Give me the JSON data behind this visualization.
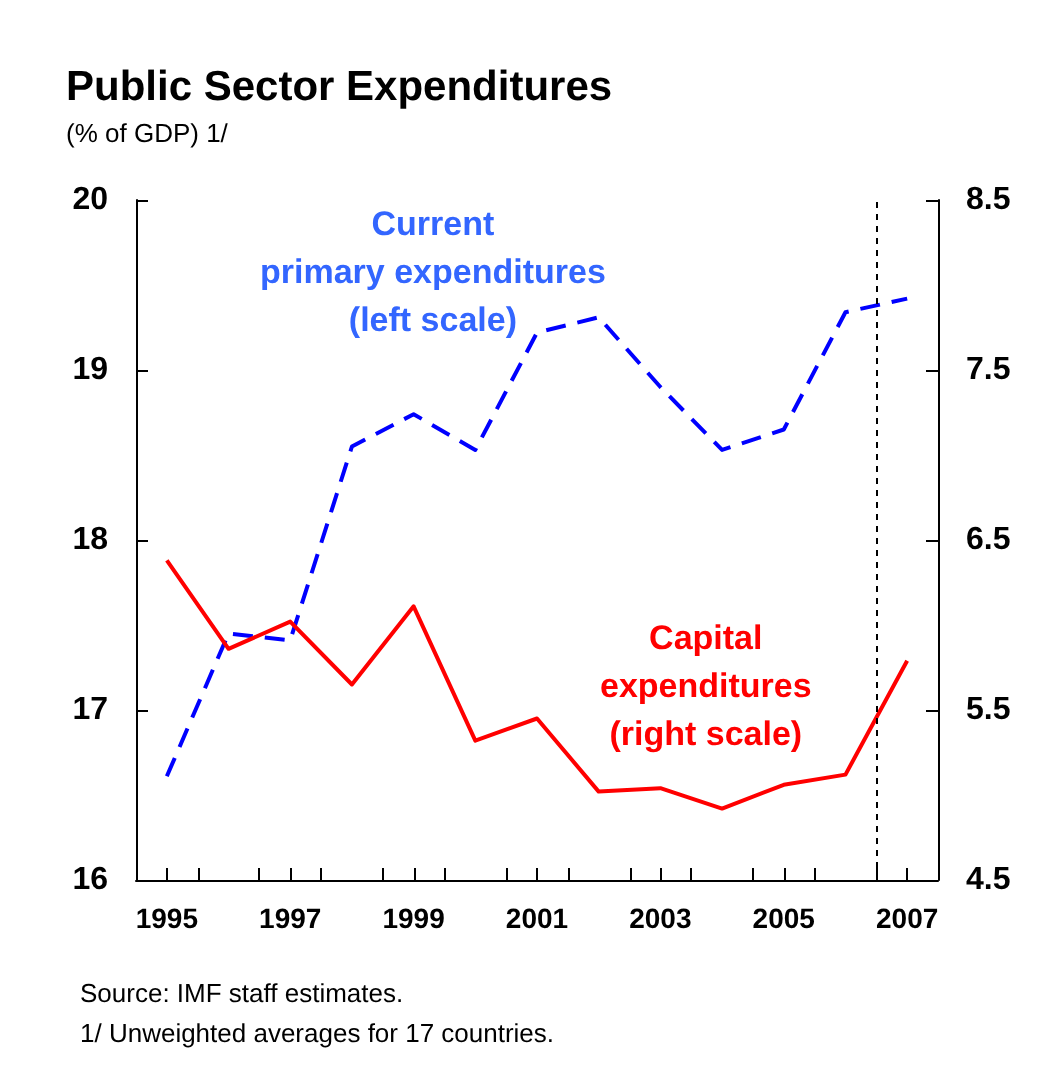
{
  "chart_data": {
    "type": "line",
    "title": "Public Sector Expenditures",
    "subtitle": "(% of GDP) 1/",
    "x": [
      1995,
      1996,
      1997,
      1998,
      1999,
      2000,
      2001,
      2002,
      2003,
      2004,
      2005,
      2006,
      2007
    ],
    "series": [
      {
        "name": "Current\nprimary expenditures\n(left scale)",
        "color": "#0000ff",
        "line_style": "dashed",
        "values": [
          16.61,
          17.45,
          17.41,
          18.55,
          18.74,
          18.53,
          19.22,
          19.31,
          18.9,
          18.53,
          18.65,
          19.34,
          19.42
        ]
      },
      {
        "name": "Capital\nexpenditures\n(right scale)",
        "color": "#ff0000",
        "line_style": "solid",
        "axis": "y2",
        "values": [
          6.38,
          5.86,
          6.02,
          5.65,
          6.11,
          5.32,
          5.45,
          5.02,
          5.04,
          4.92,
          5.06,
          5.12,
          5.79
        ]
      }
    ],
    "xlim": [
      1994.5,
      2007.5
    ],
    "xticks": [
      {
        "value": 1995,
        "label": "1995"
      },
      {
        "value": 1995.5,
        "label": null
      },
      {
        "value": 1996.5,
        "label": null
      },
      {
        "value": 1997,
        "label": "1997"
      },
      {
        "value": 1997.5,
        "label": null
      },
      {
        "value": 1998.5,
        "label": null
      },
      {
        "value": 1999,
        "label": "1999"
      },
      {
        "value": 1999.5,
        "label": null
      },
      {
        "value": 2000.5,
        "label": null
      },
      {
        "value": 2001,
        "label": "2001"
      },
      {
        "value": 2001.5,
        "label": null
      },
      {
        "value": 2002.5,
        "label": null
      },
      {
        "value": 2003,
        "label": "2003"
      },
      {
        "value": 2003.5,
        "label": null
      },
      {
        "value": 2004.5,
        "label": null
      },
      {
        "value": 2005,
        "label": "2005"
      },
      {
        "value": 2005.5,
        "label": null
      },
      {
        "value": 2006.5,
        "label": null
      },
      {
        "value": 2007,
        "label": "2007"
      }
    ],
    "ylim": [
      16,
      20
    ],
    "yticks": [
      16,
      17,
      18,
      19,
      20
    ],
    "y2lim": [
      4.5,
      8.5
    ],
    "y2ticks": [
      4.5,
      5.5,
      6.5,
      7.5,
      8.5
    ],
    "ref_lines": [
      {
        "axis": "x",
        "value": 2006.5,
        "color": "#000000",
        "line_style": "dashed"
      }
    ],
    "grid": false,
    "legend": false,
    "marker": "none",
    "annotations": [
      "Source: IMF staff estimates.",
      "1/ Unweighted averages for 17 countries."
    ]
  }
}
